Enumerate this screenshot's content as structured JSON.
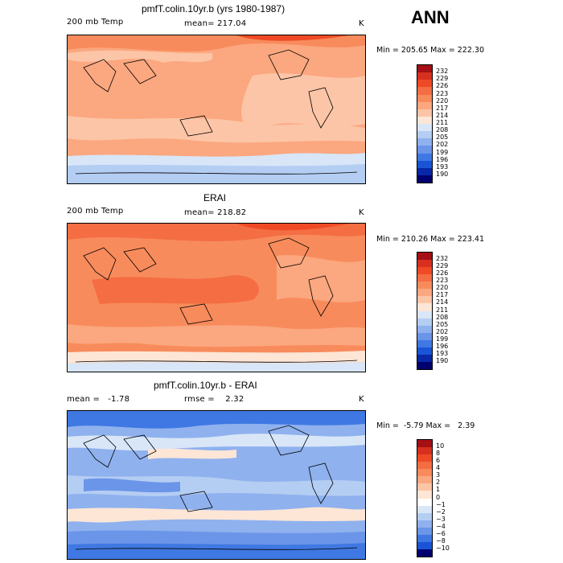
{
  "season": "ANN",
  "chart_data": [
    {
      "type": "heatmap",
      "title": "pmfT.colin.10yr.b (yrs 1980-1987)",
      "variable": "200 mb Temp",
      "mean_label": "mean= 217.04",
      "units": "K",
      "minmax_label": "Min = 205.65 Max = 222.30",
      "min": 205.65,
      "max": 222.3,
      "levels": [
        "232",
        "229",
        "226",
        "223",
        "220",
        "217",
        "214",
        "211",
        "208",
        "205",
        "202",
        "199",
        "196",
        "193",
        "190"
      ],
      "colors": [
        "#a50f15",
        "#d7301f",
        "#ef4a25",
        "#f46d43",
        "#f88b5c",
        "#fba77f",
        "#fcc5a7",
        "#fde6d6",
        "#d8e6f8",
        "#b4cdf3",
        "#8fb1ee",
        "#6b95e8",
        "#3f78e2",
        "#1a54d6",
        "#0828a8",
        "#00006e"
      ],
      "fields": [
        "#fba77f",
        "#f88b5c",
        "#fcc5a7",
        "#b4cdf3"
      ]
    },
    {
      "type": "heatmap",
      "title": "ERAI",
      "variable": "200 mb Temp",
      "mean_label": "mean= 218.82",
      "units": "K",
      "minmax_label": "Min = 210.26 Max = 223.41",
      "min": 210.26,
      "max": 223.41,
      "levels": [
        "232",
        "229",
        "226",
        "223",
        "220",
        "217",
        "214",
        "211",
        "208",
        "205",
        "202",
        "199",
        "196",
        "193",
        "190"
      ],
      "colors": [
        "#a50f15",
        "#d7301f",
        "#ef4a25",
        "#f46d43",
        "#f88b5c",
        "#fba77f",
        "#fcc5a7",
        "#fde6d6",
        "#d8e6f8",
        "#b4cdf3",
        "#8fb1ee",
        "#6b95e8",
        "#3f78e2",
        "#1a54d6",
        "#0828a8",
        "#00006e"
      ],
      "fields": [
        "#f88b5c",
        "#f46d43",
        "#fba77f",
        "#d8e6f8"
      ]
    },
    {
      "type": "heatmap",
      "title": "pmfT.colin.10yr.b - ERAI",
      "mean_label": "mean =   -1.78",
      "rmse_label": "rmse =    2.32",
      "units": "K",
      "minmax_label": "Min =  -5.79 Max =   2.39",
      "min": -5.79,
      "max": 2.39,
      "levels": [
        "10",
        "8",
        "6",
        "4",
        "3",
        "2",
        "1",
        "0",
        "−1",
        "−2",
        "−3",
        "−4",
        "−6",
        "−8",
        "−10"
      ],
      "colors": [
        "#a50f15",
        "#d7301f",
        "#ef4a25",
        "#f46d43",
        "#f88b5c",
        "#fba77f",
        "#fcc5a7",
        "#fde6d6",
        "#ffffff",
        "#d8e6f8",
        "#b4cdf3",
        "#8fb1ee",
        "#6b95e8",
        "#3f78e2",
        "#1a54d6",
        "#00006e"
      ],
      "fields": [
        "#8fb1ee",
        "#b4cdf3",
        "#d8e6f8",
        "#3f78e2"
      ]
    }
  ]
}
